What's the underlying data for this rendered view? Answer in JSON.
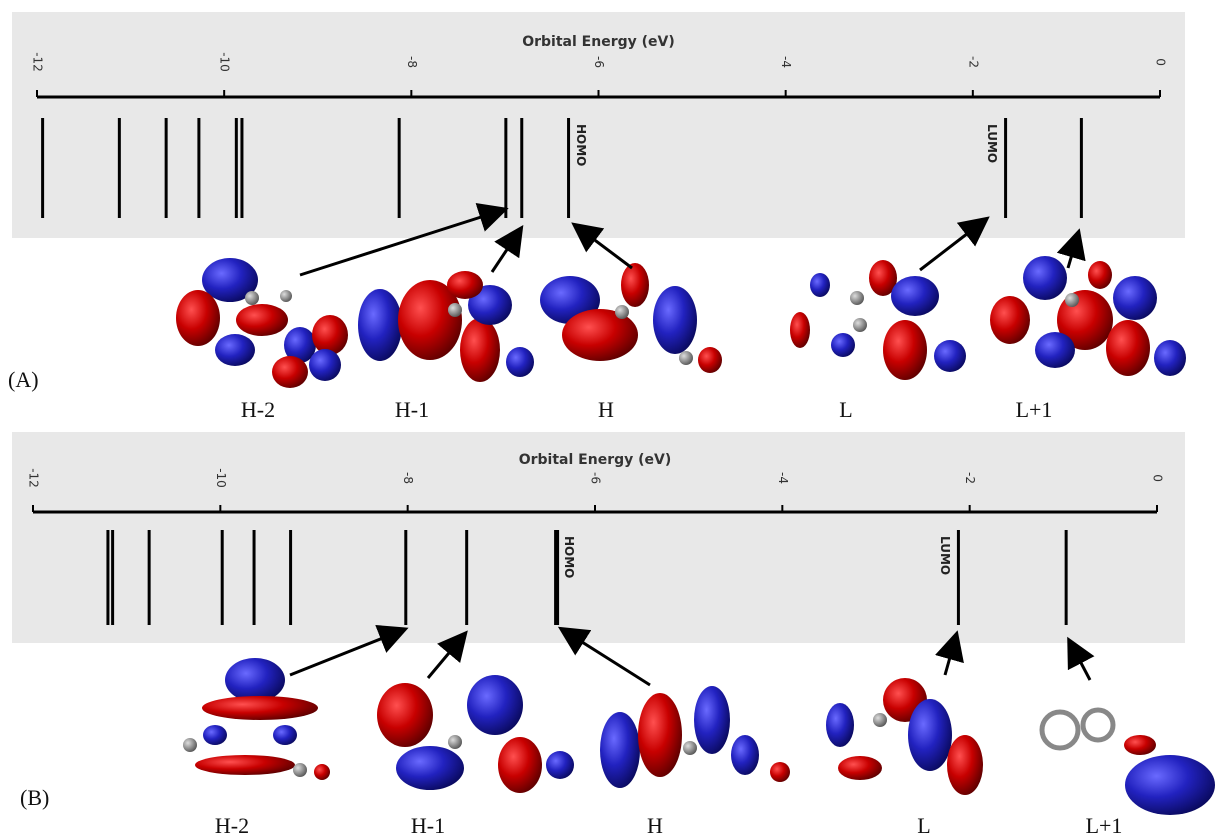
{
  "chart_data": [
    {
      "type": "levels",
      "title": "Orbital Energy (eV)",
      "xlim": [
        -12,
        0
      ],
      "xticks": [
        -12,
        -10,
        -8,
        -6,
        -4,
        -2,
        0
      ],
      "series": [
        {
          "name": "HOMO",
          "color": "#000000",
          "values": [
            -11.94,
            -11.12,
            -10.62,
            -10.27,
            -9.87,
            -9.81,
            -8.13,
            -6.99,
            -6.82,
            -6.32
          ]
        },
        {
          "name": "LUMO",
          "color": "#000000",
          "values": [
            -1.65,
            -0.84
          ]
        }
      ],
      "orbital_labels": [
        "H-2",
        "H-1",
        "H",
        "L",
        "L+1"
      ],
      "panel_label": "(A)"
    },
    {
      "type": "levels",
      "title": "Orbital Energy (eV)",
      "xlim": [
        -12,
        0
      ],
      "xticks": [
        -12,
        -10,
        -8,
        -6,
        -4,
        -2,
        0
      ],
      "series": [
        {
          "name": "HOMO",
          "color": "#000000",
          "values": [
            -11.2,
            -11.15,
            -10.76,
            -9.98,
            -9.64,
            -9.25,
            -8.02,
            -7.37,
            -6.41
          ]
        },
        {
          "name": "LUMO",
          "color": "#000000",
          "values": [
            -2.12,
            -0.97
          ]
        }
      ],
      "orbital_labels": [
        "H-2",
        "H-1",
        "H",
        "L",
        "L+1"
      ],
      "panel_label": "(B)"
    }
  ]
}
